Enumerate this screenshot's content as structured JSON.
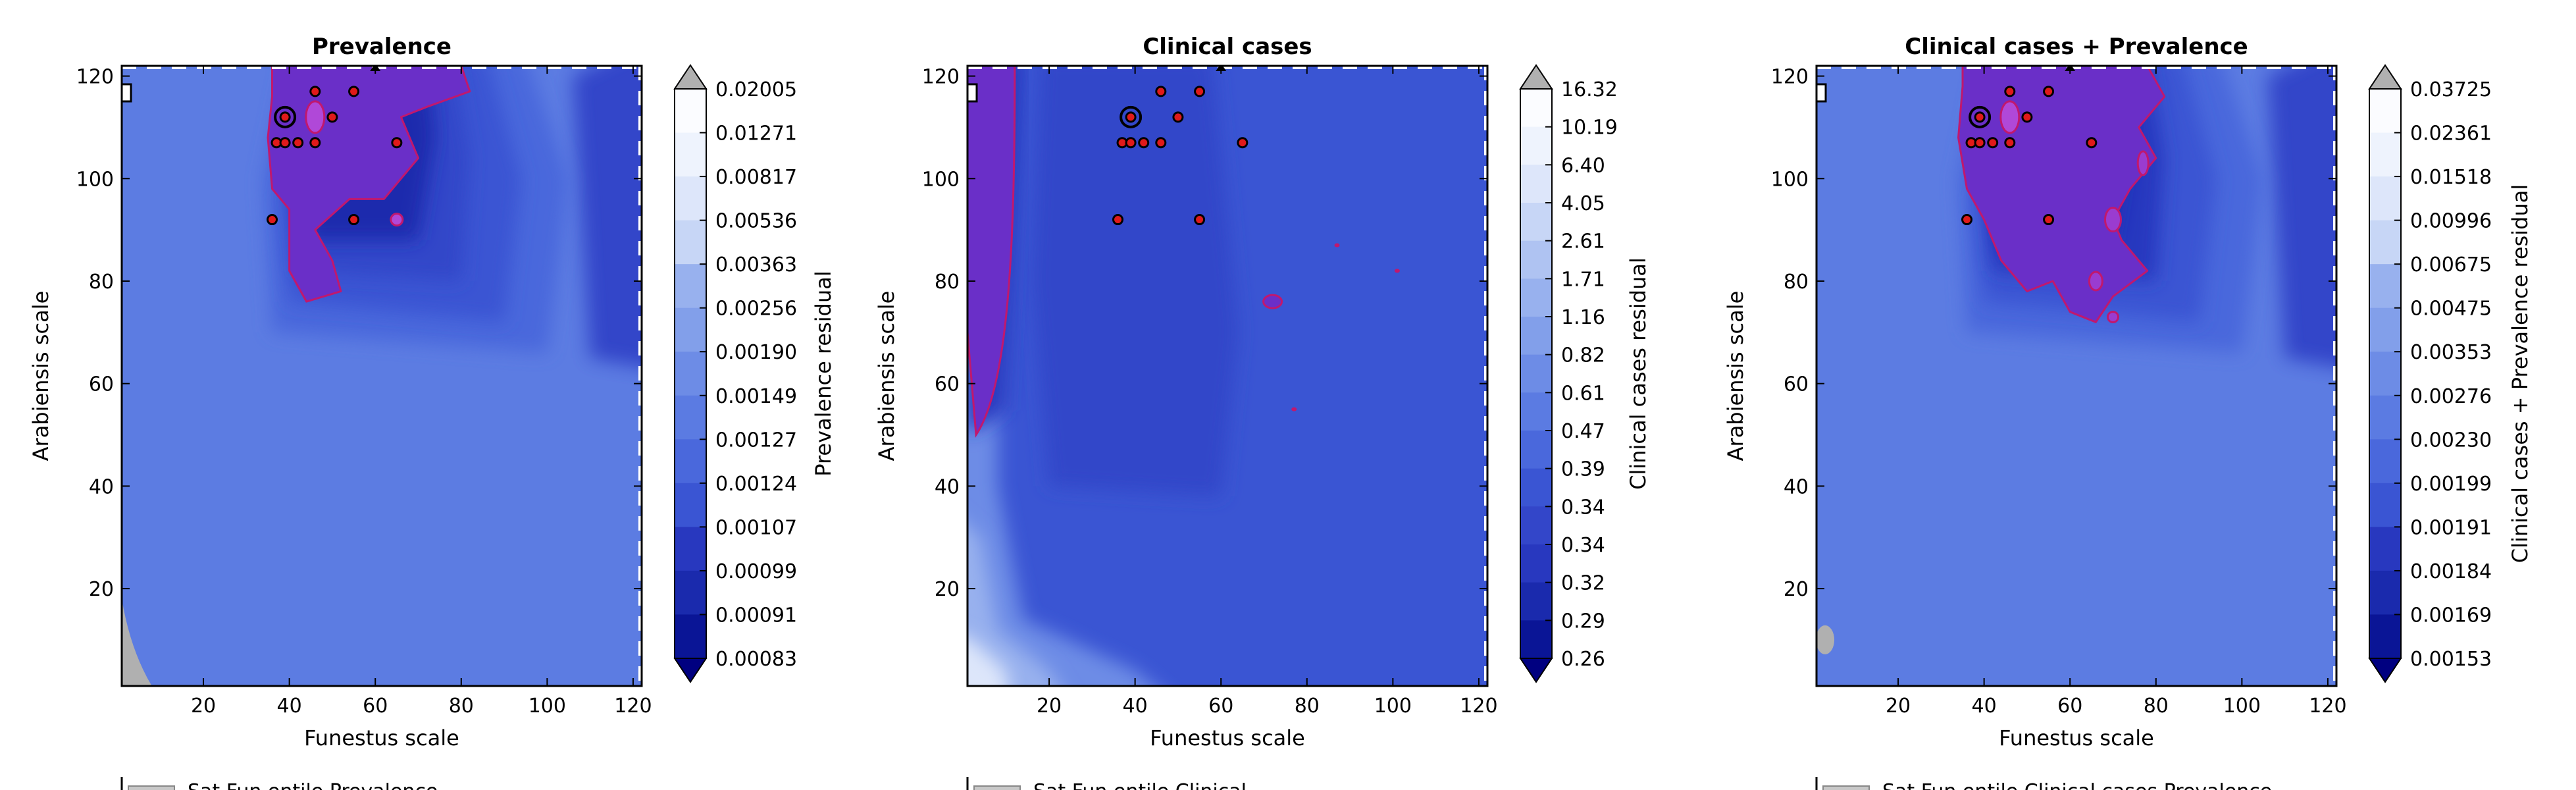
{
  "chart_data": [
    {
      "type": "heatmap",
      "title": "Prevalence",
      "xlabel": "Funestus scale",
      "ylabel": "Arabiensis scale",
      "xlim": [
        1,
        122
      ],
      "ylim": [
        1,
        122
      ],
      "x_ticks": [
        "20",
        "40",
        "60",
        "80",
        "100",
        "120"
      ],
      "y_ticks": [
        "20",
        "40",
        "60",
        "80",
        "100",
        "120"
      ],
      "colorbar_label": "Prevalence residual",
      "colorbar_ticks": [
        "0.02005",
        "0.01271",
        "0.00817",
        "0.00536",
        "0.00363",
        "0.00256",
        "0.00190",
        "0.00149",
        "0.00127",
        "0.00124",
        "0.00107",
        "0.00099",
        "0.00091",
        "0.00083"
      ],
      "points": [
        [
          37,
          107
        ],
        [
          39,
          107
        ],
        [
          42,
          107
        ],
        [
          46,
          107
        ],
        [
          36,
          92
        ],
        [
          55,
          92
        ],
        [
          46,
          117
        ],
        [
          55,
          117
        ],
        [
          50,
          112
        ],
        [
          65,
          107
        ]
      ],
      "best_fit": [
        39,
        112
      ],
      "legend_partial": "Sat Fun entile Prevalence"
    },
    {
      "type": "heatmap",
      "title": "Clinical cases",
      "xlabel": "Funestus scale",
      "ylabel": "Arabiensis scale",
      "xlim": [
        1,
        122
      ],
      "ylim": [
        1,
        122
      ],
      "x_ticks": [
        "20",
        "40",
        "60",
        "80",
        "100",
        "120"
      ],
      "y_ticks": [
        "20",
        "40",
        "60",
        "80",
        "100",
        "120"
      ],
      "colorbar_label": "Clinical cases residual",
      "colorbar_ticks": [
        "16.32",
        "10.19",
        "6.40",
        "4.05",
        "2.61",
        "1.71",
        "1.16",
        "0.82",
        "0.61",
        "0.47",
        "0.39",
        "0.34",
        "0.34",
        "0.32",
        "0.29",
        "0.26"
      ],
      "points": [
        [
          37,
          107
        ],
        [
          39,
          107
        ],
        [
          42,
          107
        ],
        [
          46,
          107
        ],
        [
          36,
          92
        ],
        [
          55,
          92
        ],
        [
          46,
          117
        ],
        [
          55,
          117
        ],
        [
          50,
          112
        ],
        [
          65,
          107
        ]
      ],
      "best_fit": [
        39,
        112
      ],
      "legend_partial": "Sat Fun entile Clinical"
    },
    {
      "type": "heatmap",
      "title": "Clinical cases + Prevalence",
      "xlabel": "Funestus scale",
      "ylabel": "Arabiensis scale",
      "xlim": [
        1,
        122
      ],
      "ylim": [
        1,
        122
      ],
      "x_ticks": [
        "20",
        "40",
        "60",
        "80",
        "100",
        "120"
      ],
      "y_ticks": [
        "20",
        "40",
        "60",
        "80",
        "100",
        "120"
      ],
      "colorbar_label": "Clinical cases + Prevalence residual",
      "colorbar_ticks": [
        "0.03725",
        "0.02361",
        "0.01518",
        "0.00996",
        "0.00675",
        "0.00475",
        "0.00353",
        "0.00276",
        "0.00230",
        "0.00199",
        "0.00191",
        "0.00184",
        "0.00169",
        "0.00153"
      ],
      "points": [
        [
          37,
          107
        ],
        [
          39,
          107
        ],
        [
          42,
          107
        ],
        [
          46,
          107
        ],
        [
          36,
          92
        ],
        [
          55,
          92
        ],
        [
          46,
          117
        ],
        [
          55,
          117
        ],
        [
          50,
          112
        ],
        [
          65,
          107
        ]
      ],
      "best_fit": [
        39,
        112
      ],
      "legend_partial": "Sat Fun entile Clinical cases Prevalence"
    }
  ],
  "colors": {
    "ramp": [
      "#000080",
      "#0a1596",
      "#1a2aad",
      "#2838bf",
      "#3346c9",
      "#3a55d3",
      "#4a68dc",
      "#5b7be2",
      "#6d8ce6",
      "#829fea",
      "#98b1ee",
      "#afc3f2",
      "#c7d6f6",
      "#dde6fa",
      "#eef3fd",
      "#fbfcff"
    ],
    "minimum_region": "#6a2fc8",
    "contour_line": "#c0186e",
    "over_color": "#b0b0b0",
    "point_fill": "#e01a1a"
  }
}
